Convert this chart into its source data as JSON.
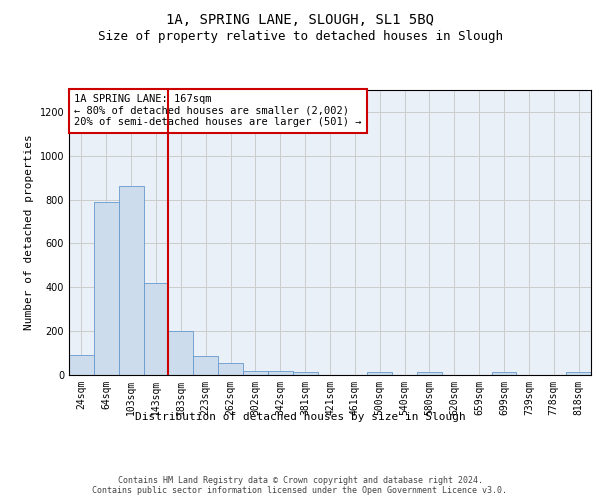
{
  "title_line1": "1A, SPRING LANE, SLOUGH, SL1 5BQ",
  "title_line2": "Size of property relative to detached houses in Slough",
  "xlabel": "Distribution of detached houses by size in Slough",
  "ylabel": "Number of detached properties",
  "bar_labels": [
    "24sqm",
    "64sqm",
    "103sqm",
    "143sqm",
    "183sqm",
    "223sqm",
    "262sqm",
    "302sqm",
    "342sqm",
    "381sqm",
    "421sqm",
    "461sqm",
    "500sqm",
    "540sqm",
    "580sqm",
    "620sqm",
    "659sqm",
    "699sqm",
    "739sqm",
    "778sqm",
    "818sqm"
  ],
  "bar_values": [
    90,
    790,
    860,
    420,
    200,
    85,
    55,
    20,
    20,
    12,
    0,
    0,
    12,
    0,
    12,
    0,
    0,
    12,
    0,
    0,
    12
  ],
  "bar_color": "#ccdcec",
  "bar_edge_color": "#6699cc",
  "vline_color": "#cc0000",
  "annotation_text": "1A SPRING LANE: 167sqm\n← 80% of detached houses are smaller (2,002)\n20% of semi-detached houses are larger (501) →",
  "annotation_box_color": "white",
  "annotation_box_edge": "#cc0000",
  "ylim": [
    0,
    1300
  ],
  "yticks": [
    0,
    200,
    400,
    600,
    800,
    1000,
    1200
  ],
  "grid_color": "#cccccc",
  "background_color": "#eaf0f8",
  "footer_text": "Contains HM Land Registry data © Crown copyright and database right 2024.\nContains public sector information licensed under the Open Government Licence v3.0.",
  "title_fontsize": 10,
  "subtitle_fontsize": 9,
  "tick_fontsize": 7,
  "ylabel_fontsize": 8,
  "xlabel_fontsize": 8,
  "annot_fontsize": 7.5,
  "footer_fontsize": 6
}
